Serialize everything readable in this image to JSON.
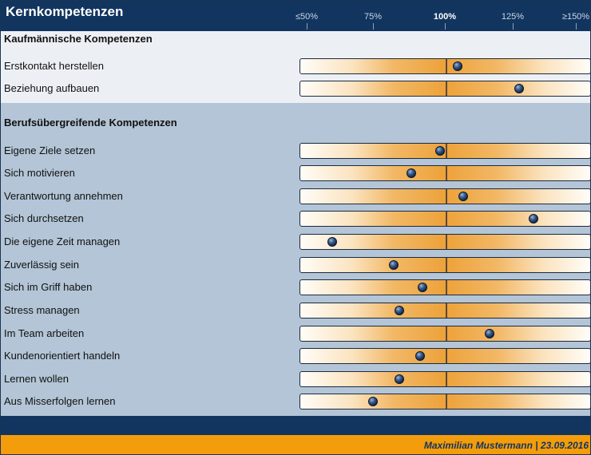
{
  "header": {
    "title": "Kernkompetenzen"
  },
  "scale": {
    "labels": [
      "≤50%",
      "75%",
      "100%",
      "125%",
      "≥150%"
    ],
    "values": [
      50,
      75,
      100,
      125,
      150
    ]
  },
  "footer": {
    "text": "Maximilian Mustermann | 23.09.2016"
  },
  "colors": {
    "header": "#12355f",
    "section1": "#ecf0f5",
    "section2": "#b3c5d6",
    "accent": "#f39c0c",
    "dot": "#0c1f3d"
  },
  "chart_data": {
    "type": "dot-scale",
    "title": "Kernkompetenzen",
    "xlim": [
      50,
      150
    ],
    "xlabel": "",
    "ylabel": "",
    "ticks": [
      "≤50%",
      "75%",
      "100%",
      "125%",
      "≥150%"
    ],
    "reference": 100,
    "groups": [
      {
        "name": "Kaufmännische Kompetenzen",
        "items": [
          {
            "label": "Erstkontakt herstellen",
            "value": 104
          },
          {
            "label": "Beziehung aufbauen",
            "value": 125
          }
        ]
      },
      {
        "name": "Berufsübergreifende Kompetenzen",
        "items": [
          {
            "label": "Eigene Ziele setzen",
            "value": 98
          },
          {
            "label": "Sich motivieren",
            "value": 88
          },
          {
            "label": "Verantwortung annehmen",
            "value": 106
          },
          {
            "label": "Sich durchsetzen",
            "value": 130
          },
          {
            "label": "Die eigene Zeit managen",
            "value": 61
          },
          {
            "label": "Zuverlässig sein",
            "value": 82
          },
          {
            "label": "Sich im Griff haben",
            "value": 92
          },
          {
            "label": "Stress managen",
            "value": 84
          },
          {
            "label": "Im Team arbeiten",
            "value": 115
          },
          {
            "label": "Kundenorientiert handeln",
            "value": 91
          },
          {
            "label": "Lernen wollen",
            "value": 84
          },
          {
            "label": "Aus Misserfolgen lernen",
            "value": 75
          }
        ]
      }
    ]
  }
}
